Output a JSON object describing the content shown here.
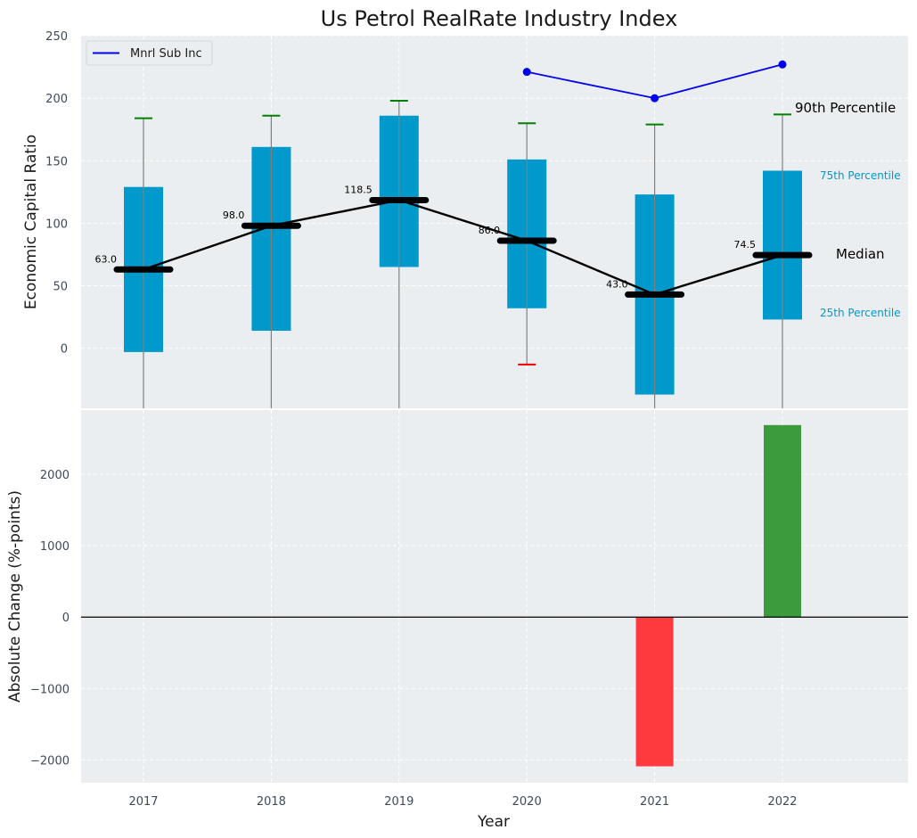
{
  "chart_data": [
    {
      "type": "box",
      "title": "Us Petrol RealRate Industry Index",
      "xlabel": "",
      "ylabel": "Economic Capital Ratio",
      "ylim": [
        -48,
        250
      ],
      "yticks": [
        "0",
        "50",
        "100",
        "150",
        "200",
        "250"
      ],
      "grid": true,
      "categories": [
        "2017",
        "2018",
        "2019",
        "2020",
        "2021",
        "2022"
      ],
      "boxes": [
        {
          "year": "2017",
          "p10": -50,
          "p25": -3,
          "median": 63.0,
          "p75": 129,
          "p90": 184,
          "median_label": "63.0"
        },
        {
          "year": "2018",
          "p10": -50,
          "p25": 14,
          "median": 98.0,
          "p75": 161,
          "p90": 186,
          "median_label": "98.0"
        },
        {
          "year": "2019",
          "p10": -50,
          "p25": 65,
          "median": 118.5,
          "p75": 186,
          "p90": 198,
          "median_label": "118.5"
        },
        {
          "year": "2020",
          "p10": -13,
          "p25": 32,
          "median": 86.0,
          "p75": 151,
          "p90": 180,
          "median_label": "86.0"
        },
        {
          "year": "2021",
          "p10": -50,
          "p25": -37,
          "median": 43.0,
          "p75": 123,
          "p90": 179,
          "median_label": "43.0"
        },
        {
          "year": "2022",
          "p10": -50,
          "p25": 23,
          "median": 74.5,
          "p75": 142,
          "p90": 187,
          "median_label": "74.5"
        }
      ],
      "series": [
        {
          "name": "Mnrl Sub Inc",
          "color": "#0000ee",
          "points": [
            {
              "year": "2020",
              "value": 221
            },
            {
              "year": "2021",
              "value": 200
            },
            {
              "year": "2022",
              "value": 227
            }
          ]
        }
      ],
      "legend": {
        "placement": "top-left",
        "entries": [
          "Mnrl Sub Inc"
        ]
      },
      "annotations": {
        "p90": "90th Percentile",
        "p75": "75th Percentile",
        "median": "Median",
        "p25": "25th Percentile"
      },
      "colors": {
        "box": "#0099cc",
        "median": "#000000",
        "whisker": "#808080",
        "cap_top": "#008000",
        "cap_bottom_highlight": "#ee0000",
        "background": "#eaeef0",
        "grid": "#ffffff"
      }
    },
    {
      "type": "bar",
      "title": "",
      "xlabel": "Year",
      "ylabel": "Absolute Change (%-points)",
      "ylim": [
        -2320,
        2900
      ],
      "yticks": [
        "−2000",
        "−1000",
        "0",
        "1000",
        "2000"
      ],
      "grid": true,
      "categories": [
        "2017",
        "2018",
        "2019",
        "2020",
        "2021",
        "2022"
      ],
      "values": [
        0,
        0,
        0,
        0,
        -2090,
        2690
      ],
      "colors": {
        "negative": "#fe3a3e",
        "positive": "#3c9b3c"
      }
    }
  ]
}
